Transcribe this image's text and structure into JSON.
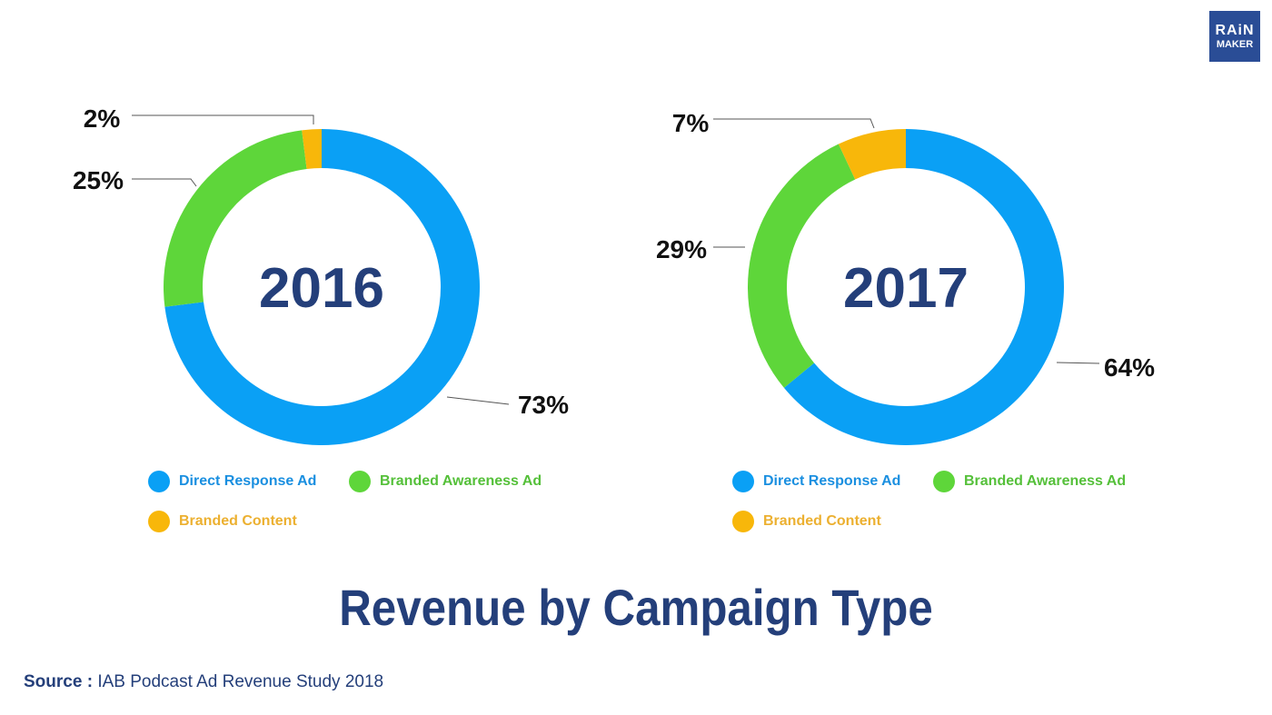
{
  "logo": {
    "line1": "RAiN",
    "line2": "MAKER"
  },
  "colors": {
    "direct": "#0aa0f5",
    "branded_awareness": "#5ed63a",
    "branded_content": "#f8b70a",
    "navy": "#243f7a"
  },
  "chart_data": [
    {
      "type": "pie",
      "variant": "donut",
      "center_label": "2016",
      "categories": [
        "Direct Response Ad",
        "Branded Awareness Ad",
        "Branded Content"
      ],
      "values": [
        73,
        25,
        2
      ],
      "labels": [
        "73%",
        "25%",
        "2%"
      ]
    },
    {
      "type": "pie",
      "variant": "donut",
      "center_label": "2017",
      "categories": [
        "Direct Response Ad",
        "Branded Awareness Ad",
        "Branded Content"
      ],
      "values": [
        64,
        29,
        7
      ],
      "labels": [
        "64%",
        "29%",
        "7%"
      ]
    }
  ],
  "legend": [
    "Direct Response Ad",
    "Branded Awareness Ad",
    "Branded Content"
  ],
  "title": "Revenue by Campaign Type",
  "source": {
    "label": "Source :",
    "text": "IAB Podcast Ad Revenue Study 2018"
  }
}
